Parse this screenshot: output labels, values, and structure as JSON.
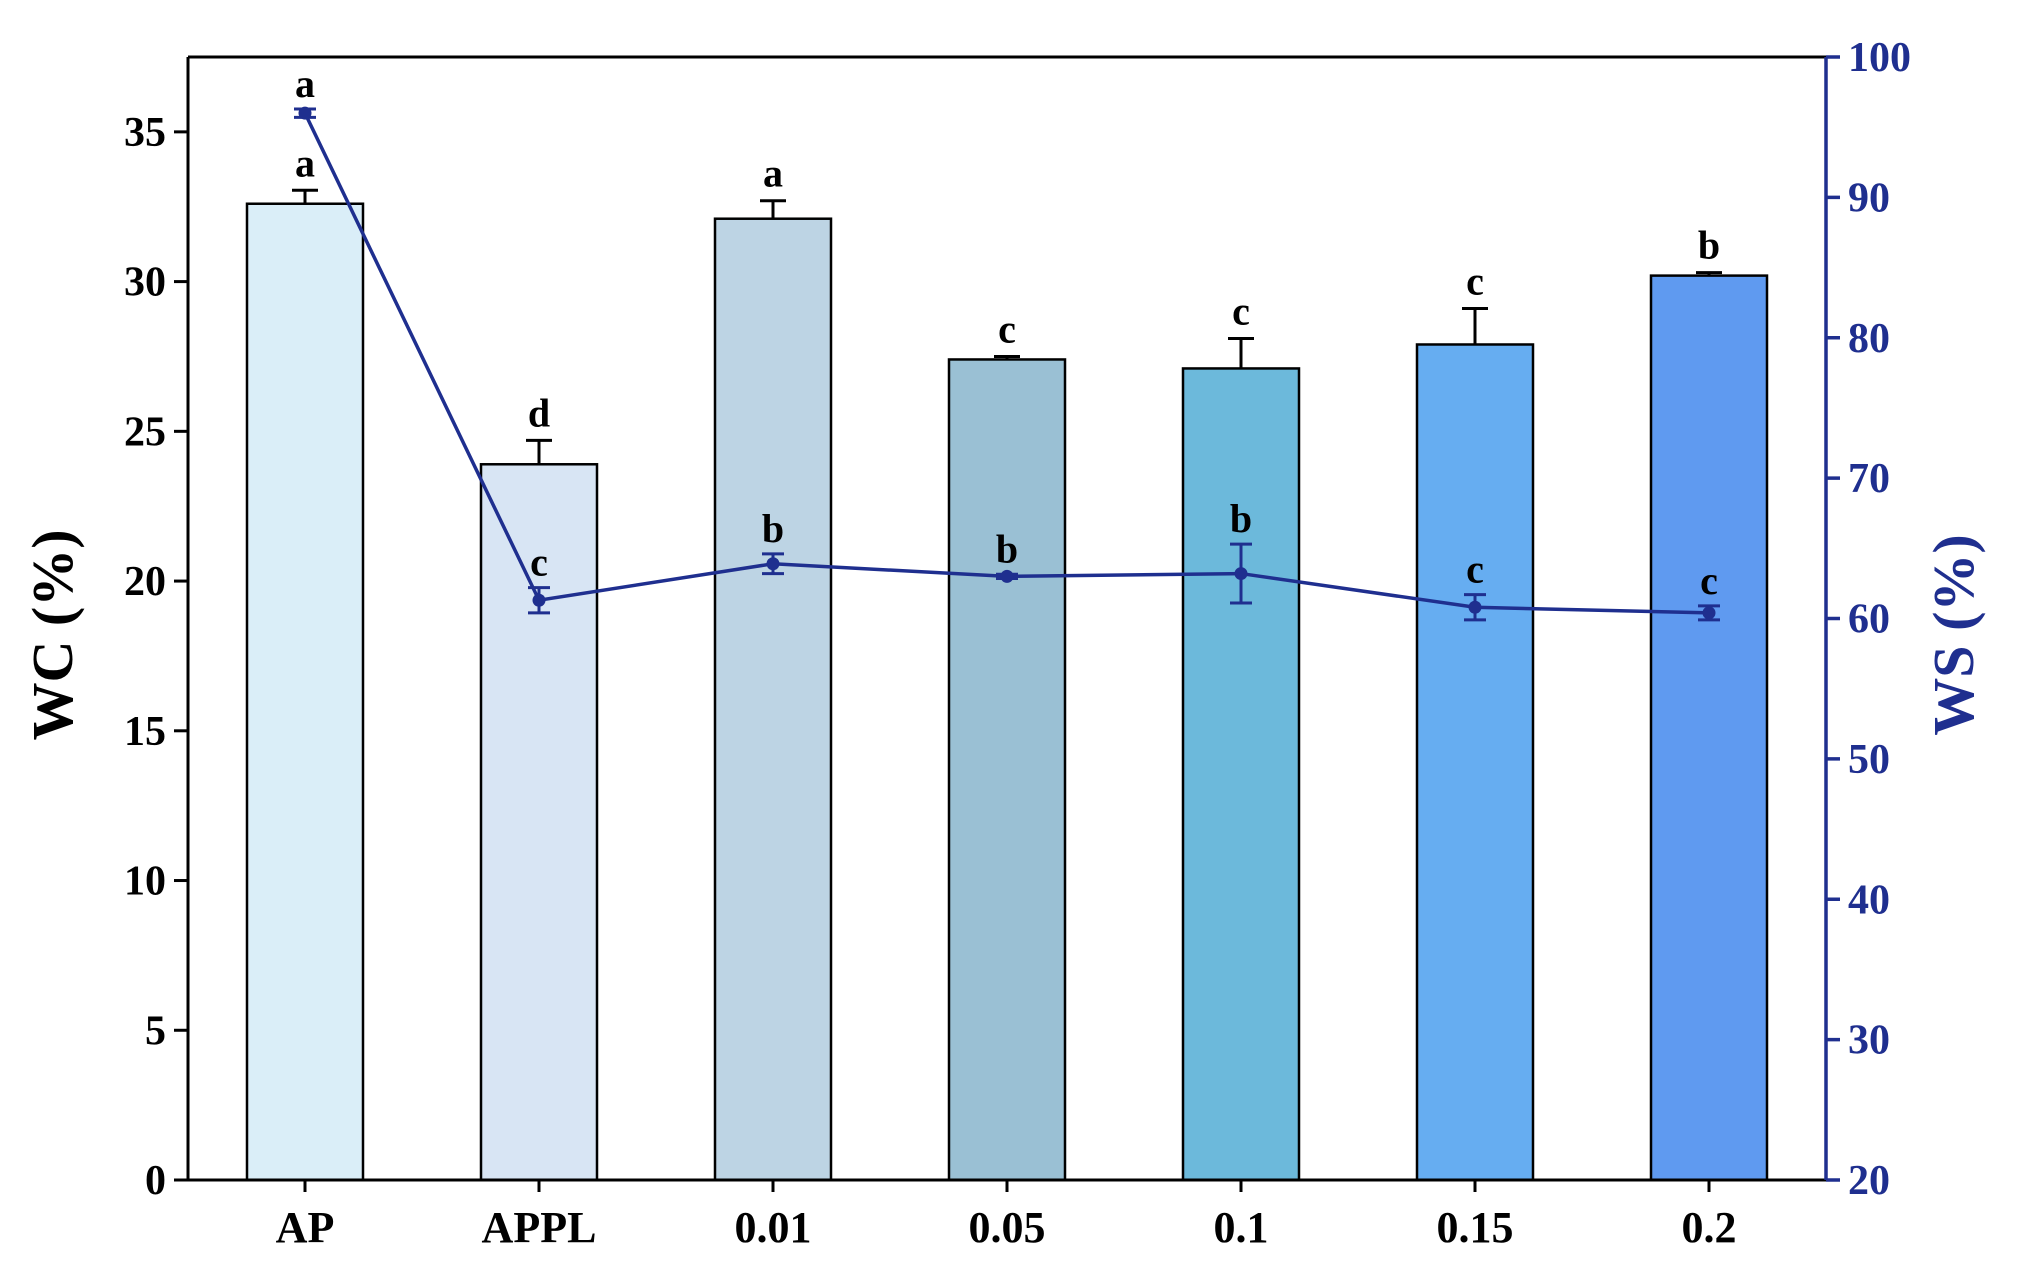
{
  "chart_data": {
    "type": "bar",
    "categories": [
      "AP",
      "APPL",
      "0.01",
      "0.05",
      "0.1",
      "0.15",
      "0.2"
    ],
    "left_axis": {
      "label": "WC (%)",
      "ylim": [
        0,
        37.5
      ],
      "ticks": [
        0,
        5,
        10,
        15,
        20,
        25,
        30,
        35
      ],
      "tick_labels": [
        "0",
        "5",
        "10",
        "15",
        "20",
        "25",
        "30",
        "35"
      ]
    },
    "right_axis": {
      "label": "WS (%)",
      "ylim": [
        20,
        100
      ],
      "ticks": [
        20,
        30,
        40,
        50,
        60,
        70,
        80,
        90,
        100
      ],
      "tick_labels": [
        "20",
        "30",
        "40",
        "50",
        "60",
        "70",
        "80",
        "90",
        "100"
      ],
      "color": "#1f2f8f"
    },
    "bars": {
      "axis": "left",
      "values": [
        32.6,
        23.9,
        32.1,
        27.4,
        27.1,
        27.9,
        30.2
      ],
      "errors": [
        0.45,
        0.8,
        0.6,
        0.1,
        1.0,
        1.2,
        0.1
      ],
      "letters": [
        "a",
        "d",
        "a",
        "c",
        "c",
        "c",
        "b"
      ],
      "colors": [
        "#daeef8",
        "#d8e5f4",
        "#bdd4e4",
        "#9ac0d4",
        "#6cb9db",
        "#66adf1",
        "#5f9af0"
      ]
    },
    "line": {
      "axis": "right",
      "values": [
        96.0,
        61.3,
        63.9,
        63.0,
        63.2,
        60.8,
        60.4
      ],
      "errors": [
        0.3,
        0.9,
        0.7,
        0.15,
        2.1,
        0.9,
        0.5
      ],
      "letters": [
        "a",
        "c",
        "b",
        "b",
        "b",
        "c",
        "c"
      ],
      "color": "#1f2f8f"
    },
    "grid": false,
    "legend": "none"
  }
}
